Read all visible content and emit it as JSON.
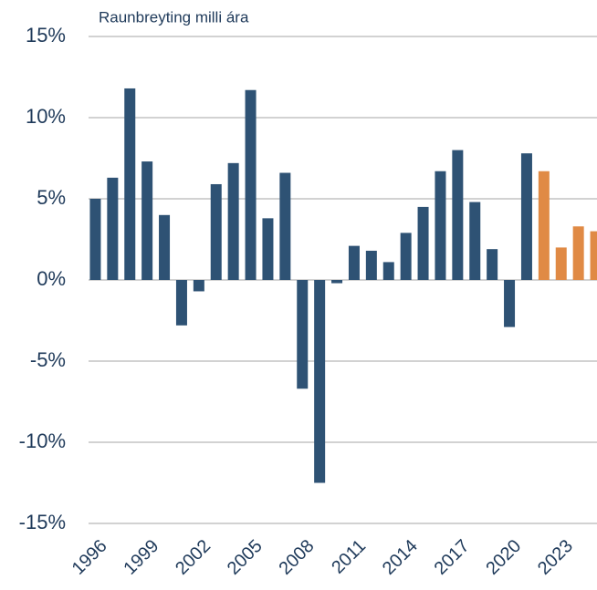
{
  "chart_data": {
    "type": "bar",
    "title": "Raunbreyting milli ára",
    "categories": [
      "1996",
      null,
      null,
      "1999",
      null,
      null,
      "2002",
      null,
      null,
      "2005",
      null,
      null,
      "2008",
      null,
      null,
      "2011",
      null,
      null,
      "2014",
      null,
      null,
      "2017",
      null,
      null,
      "2020",
      null,
      null,
      "2023",
      null,
      null
    ],
    "values": [
      5.0,
      6.3,
      11.8,
      7.3,
      4.0,
      -2.8,
      -0.7,
      5.9,
      7.2,
      11.7,
      3.8,
      6.6,
      -6.7,
      -12.5,
      -0.2,
      2.1,
      1.8,
      1.1,
      2.9,
      4.5,
      6.7,
      8.0,
      4.8,
      1.9,
      -2.9,
      7.8,
      6.7,
      2.0,
      3.3,
      3.0
    ],
    "colors": [
      "#2e5274",
      "#2e5274",
      "#2e5274",
      "#2e5274",
      "#2e5274",
      "#2e5274",
      "#2e5274",
      "#2e5274",
      "#2e5274",
      "#2e5274",
      "#2e5274",
      "#2e5274",
      "#2e5274",
      "#2e5274",
      "#2e5274",
      "#2e5274",
      "#2e5274",
      "#2e5274",
      "#2e5274",
      "#2e5274",
      "#2e5274",
      "#2e5274",
      "#2e5274",
      "#2e5274",
      "#2e5274",
      "#2e5274",
      "#e08a45",
      "#e08a45",
      "#e08a45",
      "#e08a45"
    ],
    "ylim": [
      -15,
      15
    ],
    "yticks": [
      {
        "value": -15,
        "label": "-15%"
      },
      {
        "value": -10,
        "label": "-10%"
      },
      {
        "value": -5,
        "label": "-5%"
      },
      {
        "value": 0,
        "label": "0%"
      },
      {
        "value": 5,
        "label": "5%"
      },
      {
        "value": 10,
        "label": "10%"
      },
      {
        "value": 15,
        "label": "15%"
      }
    ],
    "grid": true
  }
}
